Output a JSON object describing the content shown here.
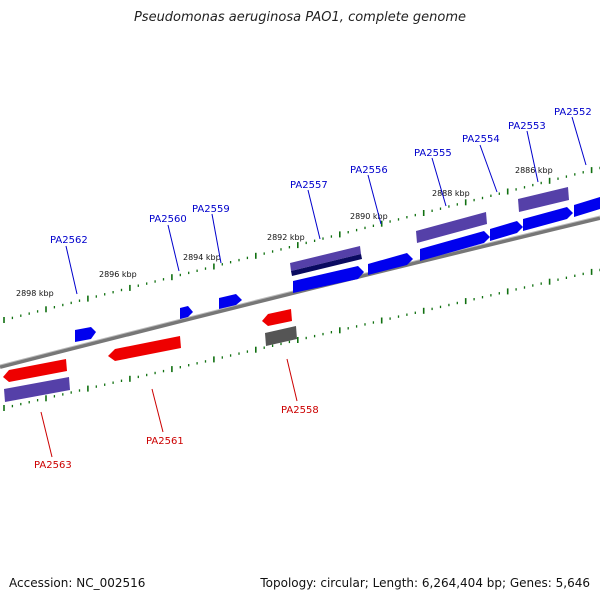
{
  "title": "Pseudomonas aeruginosa PAO1, complete genome",
  "footer": {
    "accession": "Accession: NC_002516",
    "topology": "Topology: circular; Length: 6,264,404 bp; Genes: 5,646"
  },
  "colors": {
    "forward_gene": "#0000ee",
    "reverse_gene": "#ee0000",
    "gene_bar": "#5540a8",
    "gene_bar_dark": "#0a0a60",
    "gray_gene": "#555555",
    "tick": "#107010",
    "backbone": "#777777",
    "forward_label": "#0000cc",
    "reverse_label": "#cc0000"
  },
  "scale_labels": [
    "2898 kbp",
    "2896 kbp",
    "2894 kbp",
    "2892 kbp",
    "2890 kbp",
    "2888 kbp",
    "2886 kbp"
  ],
  "forward_genes": [
    "PA2562",
    "PA2560",
    "PA2559",
    "PA2557",
    "PA2556",
    "PA2555",
    "PA2554",
    "PA2553",
    "PA2552"
  ],
  "reverse_genes": [
    "PA2563",
    "PA2561",
    "PA2558"
  ]
}
